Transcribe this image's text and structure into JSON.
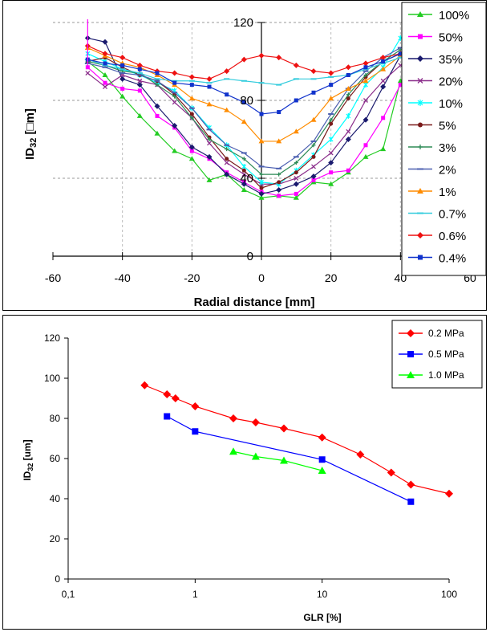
{
  "chart_data": [
    {
      "type": "line",
      "title": "",
      "xlabel": "Radial distance [mm]",
      "ylabel": "ID32 [□m]",
      "ylabel_main": "ID",
      "ylabel_sub": "32",
      "ylabel_unit": " [□m]",
      "xlim": [
        -60,
        60
      ],
      "ylim": [
        0,
        120
      ],
      "xticks": [
        "-60",
        "-40",
        "-20",
        "0",
        "20",
        "40",
        "60"
      ],
      "xtick_values": [
        -60,
        -40,
        -20,
        0,
        20,
        40,
        60
      ],
      "yticks": [
        "0",
        "40",
        "80",
        "120"
      ],
      "ytick_values": [
        0,
        40,
        80,
        120
      ],
      "grid": "dashed",
      "legend_position": "right",
      "x": [
        -50,
        -45,
        -40,
        -35,
        -30,
        -25,
        -20,
        -15,
        -10,
        -5,
        0,
        5,
        10,
        15,
        20,
        25,
        30,
        35,
        40
      ],
      "series": [
        {
          "name": "100%",
          "color": "#22cc22",
          "marker": "triangle",
          "values": [
            100,
            93,
            82,
            72,
            63,
            54,
            50,
            39,
            42,
            34,
            30,
            31,
            30,
            38,
            37,
            43,
            51,
            55,
            90
          ]
        },
        {
          "name": "50%",
          "color": "#ff00ff",
          "marker": "square",
          "values": [
            97,
            89,
            86,
            85,
            72,
            66,
            54,
            50,
            43,
            38,
            33,
            31,
            32,
            39,
            43,
            44,
            57,
            71,
            88
          ]
        },
        {
          "name": "35%",
          "color": "#1a1a6e",
          "marker": "diamond",
          "values": [
            112,
            110,
            91,
            88,
            77,
            67,
            56,
            51,
            42,
            37,
            32,
            34,
            37,
            41,
            48,
            60,
            70,
            87,
            103
          ]
        },
        {
          "name": "20%",
          "color": "#8b2d8b",
          "marker": "x",
          "values": [
            94,
            87,
            93,
            90,
            88,
            79,
            71,
            58,
            48,
            42,
            37,
            37,
            40,
            46,
            53,
            64,
            80,
            90,
            98
          ]
        },
        {
          "name": "10%",
          "color": "#00ffff",
          "marker": "star",
          "values": [
            104,
            100,
            96,
            93,
            89,
            85,
            76,
            66,
            57,
            46,
            38,
            37,
            44,
            52,
            60,
            72,
            88,
            97,
            112
          ]
        },
        {
          "name": "5%",
          "color": "#7a1a1a",
          "marker": "circle",
          "values": [
            100,
            102,
            97,
            93,
            90,
            83,
            73,
            61,
            50,
            44,
            35,
            38,
            43,
            51,
            68,
            81,
            92,
            100,
            104
          ]
        },
        {
          "name": "3%",
          "color": "#2e8b57",
          "marker": "plus",
          "values": [
            100,
            98,
            95,
            94,
            88,
            82,
            71,
            60,
            55,
            50,
            42,
            42,
            48,
            57,
            70,
            83,
            93,
            100,
            106
          ]
        },
        {
          "name": "2%",
          "color": "#4b5fb0",
          "marker": "dash",
          "values": [
            99,
            97,
            94,
            93,
            90,
            84,
            76,
            65,
            57,
            53,
            46,
            45,
            51,
            59,
            73,
            86,
            95,
            102,
            107
          ]
        },
        {
          "name": "1%",
          "color": "#ff8c00",
          "marker": "triangle",
          "values": [
            107,
            103,
            99,
            97,
            93,
            88,
            81,
            78,
            75,
            69,
            59,
            59,
            64,
            70,
            81,
            86,
            90,
            96,
            103
          ]
        },
        {
          "name": "0.7%",
          "color": "#33ccdd",
          "marker": "dash",
          "values": [
            101,
            98,
            96,
            94,
            91,
            90,
            90,
            89,
            91,
            90,
            89,
            88,
            91,
            91,
            92,
            93,
            96,
            99,
            102
          ]
        },
        {
          "name": "0.6%",
          "color": "#ee1111",
          "marker": "diamond",
          "values": [
            108,
            104,
            102,
            98,
            95,
            94,
            92,
            91,
            95,
            101,
            103,
            102,
            98,
            95,
            94,
            97,
            99,
            102,
            104
          ]
        },
        {
          "name": "0.4%",
          "color": "#1133cc",
          "marker": "square",
          "values": [
            101,
            99,
            98,
            96,
            94,
            89,
            88,
            87,
            83,
            79,
            73,
            74,
            80,
            84,
            88,
            93,
            97,
            100,
            104
          ]
        }
      ]
    },
    {
      "type": "scatter",
      "title": "",
      "xlabel": "GLR [%]",
      "ylabel": "ID32 [um]",
      "ylabel_main": "ID",
      "ylabel_sub": "32",
      "ylabel_unit": " [um]",
      "xscale": "log",
      "xlim": [
        0.1,
        100
      ],
      "ylim": [
        0,
        120
      ],
      "xticks": [
        "0,1",
        "1",
        "10",
        "100"
      ],
      "xtick_values": [
        0.1,
        1,
        10,
        100
      ],
      "yticks": [
        "0",
        "20",
        "40",
        "60",
        "80",
        "100",
        "120"
      ],
      "ytick_values": [
        0,
        20,
        40,
        60,
        80,
        100,
        120
      ],
      "grid": "none",
      "legend_position": "top-right",
      "series": [
        {
          "name": "0.2 MPa",
          "color": "#ff0000",
          "marker": "diamond",
          "x": [
            0.4,
            0.6,
            0.7,
            1,
            2,
            3,
            5,
            10,
            20,
            35,
            50,
            100
          ],
          "y": [
            96.5,
            92,
            90,
            86,
            80,
            78,
            75,
            70.5,
            62,
            53,
            47,
            42.5
          ]
        },
        {
          "name": "0.5 MPa",
          "color": "#0000ff",
          "marker": "square",
          "x": [
            0.6,
            1,
            10,
            50
          ],
          "y": [
            81,
            73.5,
            59.5,
            38.5
          ]
        },
        {
          "name": "1.0 MPa",
          "color": "#00ff00",
          "marker": "triangle",
          "x": [
            2,
            3,
            5,
            10
          ],
          "y": [
            63.5,
            61,
            59,
            54
          ]
        }
      ]
    }
  ]
}
